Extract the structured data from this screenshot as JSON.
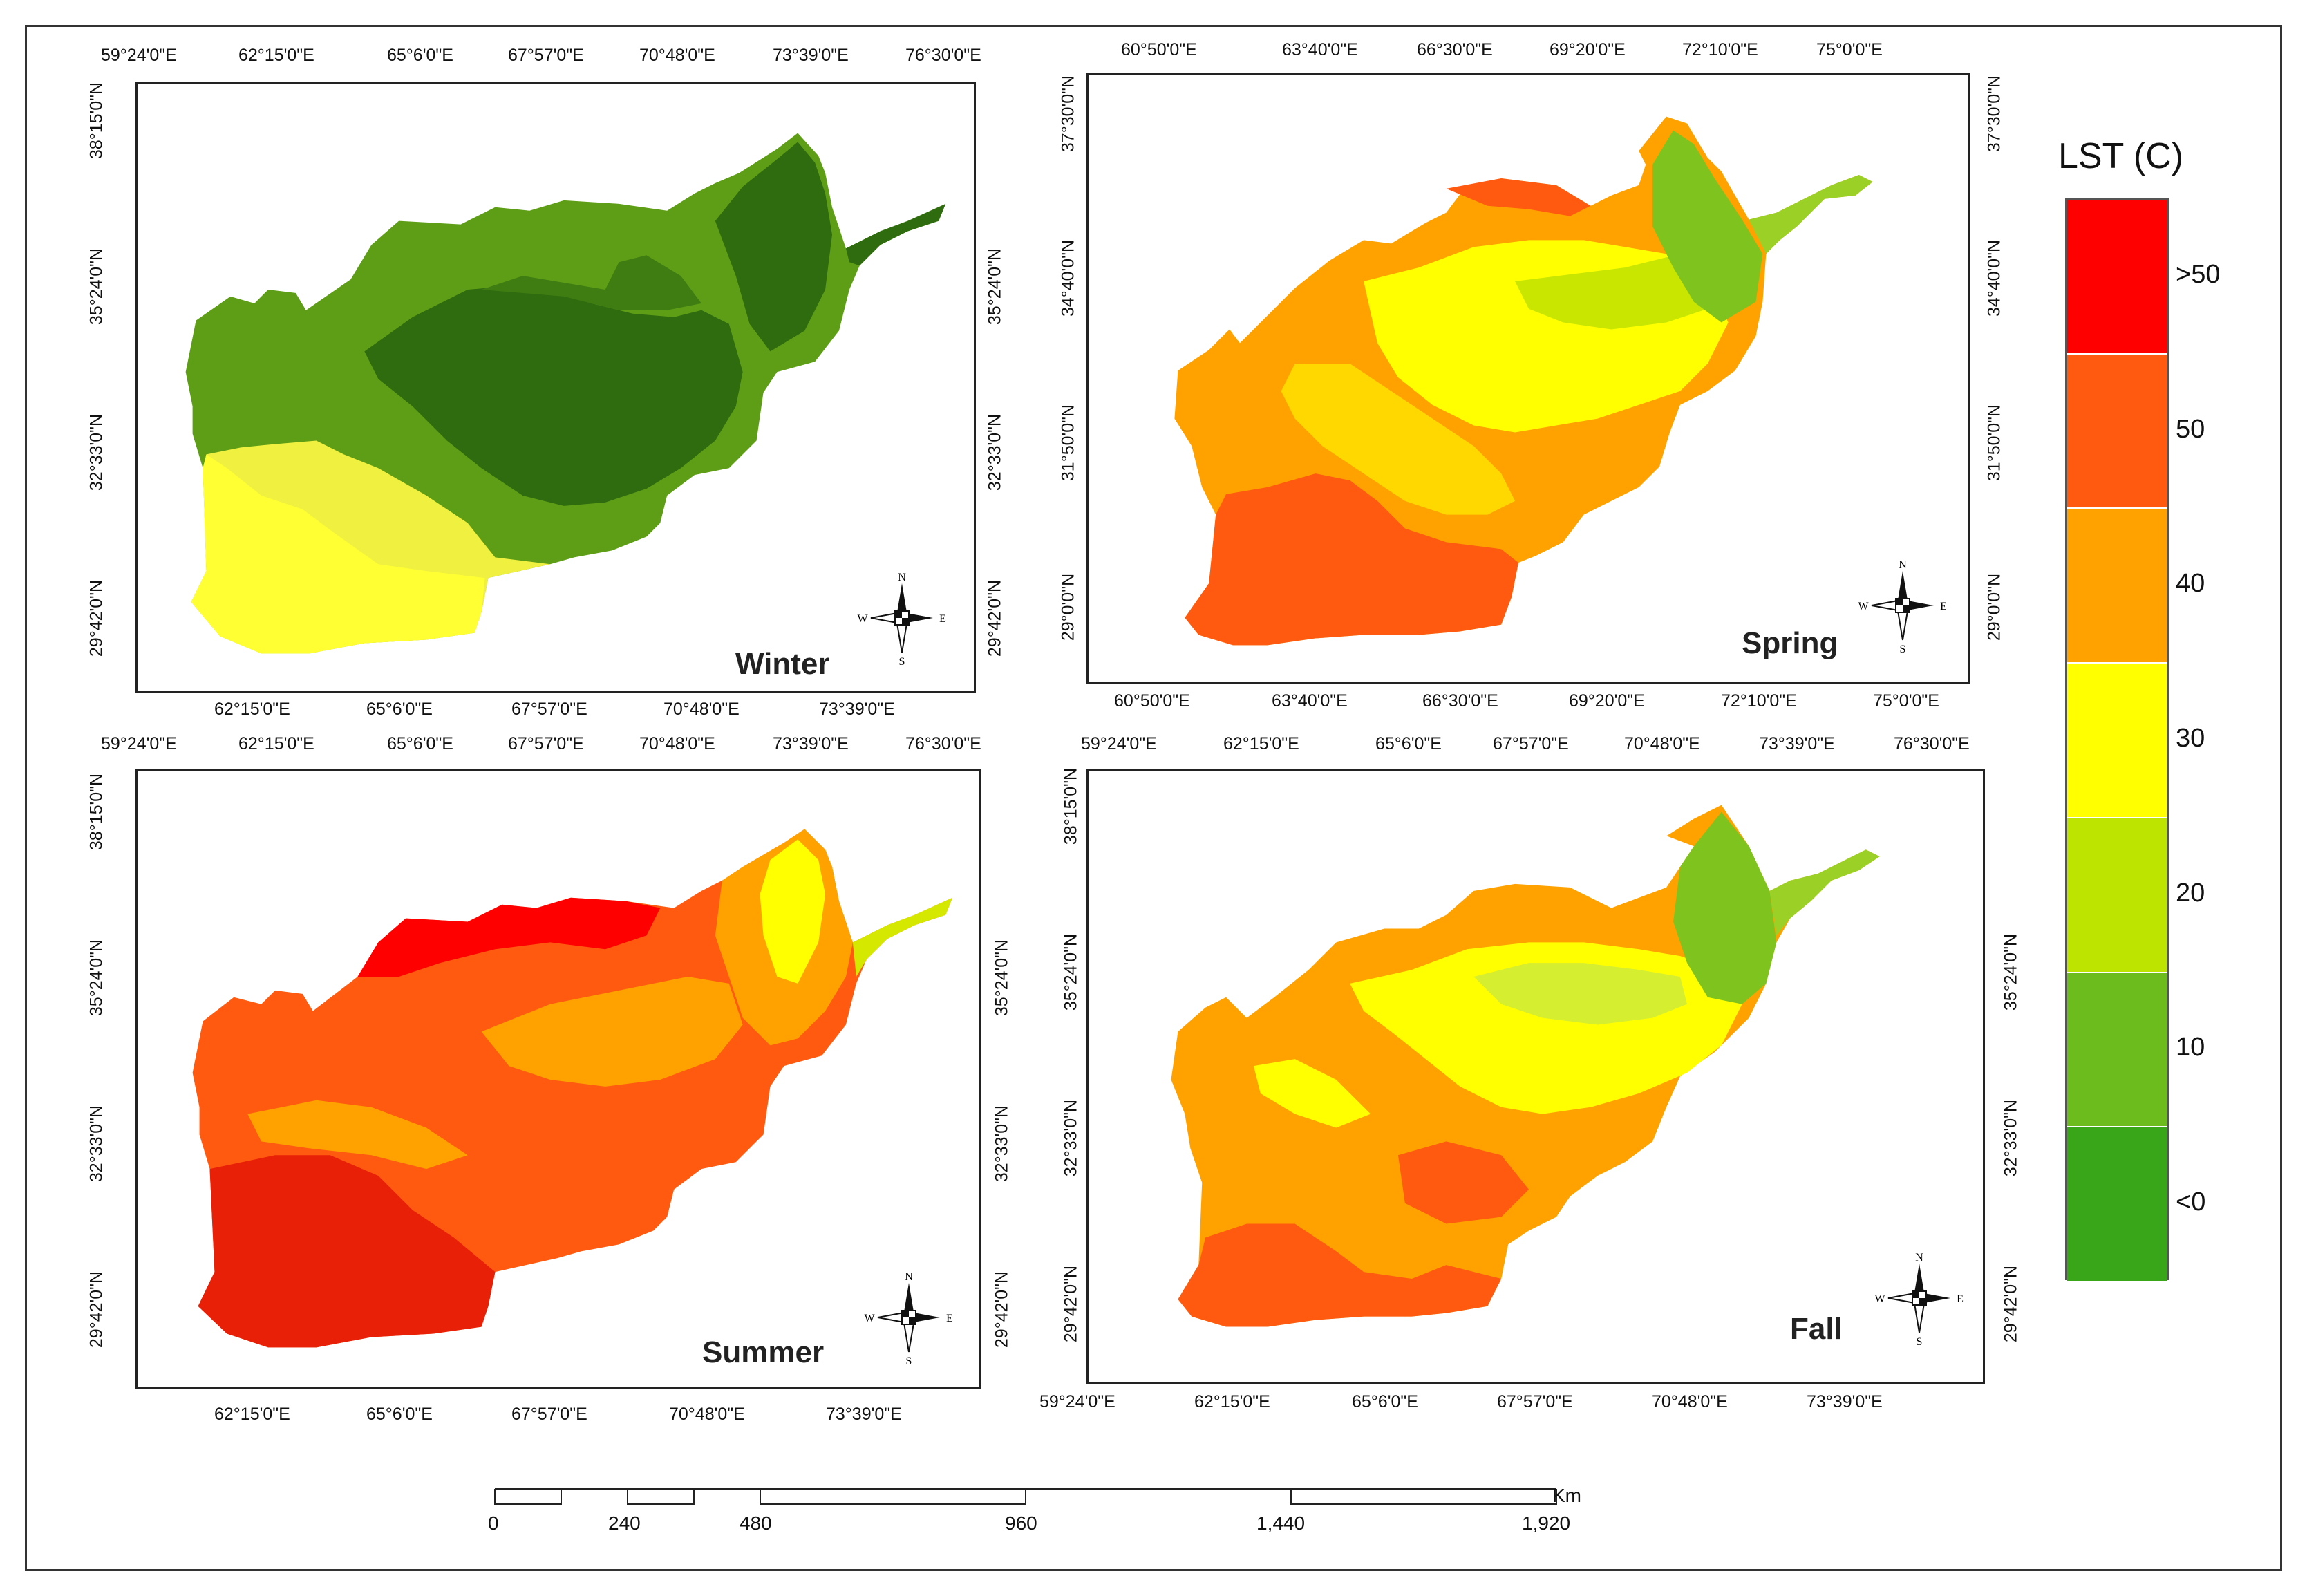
{
  "legend": {
    "title": "LST (C)",
    "classes": [
      {
        "label": ">50",
        "color": "#ff0000"
      },
      {
        "label": "50",
        "color": "#ff5a10"
      },
      {
        "label": "40",
        "color": "#ffa200"
      },
      {
        "label": "30",
        "color": "#ffff00"
      },
      {
        "label": "20",
        "color": "#bde300"
      },
      {
        "label": "10",
        "color": "#6cbc1e"
      },
      {
        "label": "<0",
        "color": "#39a518"
      }
    ]
  },
  "panels": {
    "winter": {
      "title": "Winter",
      "top_ticks": [
        "59°24'0\"E",
        "62°15'0\"E",
        "65°6'0\"E",
        "67°57'0\"E",
        "70°48'0\"E",
        "73°39'0\"E",
        "76°30'0\"E"
      ],
      "bottom_ticks": [
        "62°15'0\"E",
        "65°6'0\"E",
        "67°57'0\"E",
        "70°48'0\"E",
        "73°39'0\"E"
      ],
      "left_ticks": [
        "38°15'0\"N",
        "35°24'0\"N",
        "32°33'0\"N",
        "29°42'0\"N"
      ],
      "right_ticks": [
        "35°24'0\"N",
        "32°33'0\"N",
        "29°42'0\"N"
      ]
    },
    "spring": {
      "title": "Spring",
      "top_ticks": [
        "60°50'0\"E",
        "63°40'0\"E",
        "66°30'0\"E",
        "69°20'0\"E",
        "72°10'0\"E",
        "75°0'0\"E"
      ],
      "bottom_ticks": [
        "60°50'0\"E",
        "63°40'0\"E",
        "66°30'0\"E",
        "69°20'0\"E",
        "72°10'0\"E",
        "75°0'0\"E"
      ],
      "left_ticks": [
        "37°30'0\"N",
        "34°40'0\"N",
        "31°50'0\"N",
        "29°0'0\"N"
      ],
      "right_ticks": [
        "37°30'0\"N",
        "34°40'0\"N",
        "31°50'0\"N",
        "29°0'0\"N"
      ]
    },
    "summer": {
      "title": "Summer",
      "top_ticks": [
        "59°24'0\"E",
        "62°15'0\"E",
        "65°6'0\"E",
        "67°57'0\"E",
        "70°48'0\"E",
        "73°39'0\"E",
        "76°30'0\"E"
      ],
      "bottom_ticks": [
        "62°15'0\"E",
        "65°6'0\"E",
        "67°57'0\"E",
        "70°48'0\"E",
        "73°39'0\"E"
      ],
      "left_ticks": [
        "38°15'0\"N",
        "35°24'0\"N",
        "32°33'0\"N",
        "29°42'0\"N"
      ],
      "right_ticks": [
        "35°24'0\"N",
        "32°33'0\"N",
        "29°42'0\"N"
      ]
    },
    "fall": {
      "title": "Fall",
      "top_ticks": [
        "59°24'0\"E",
        "62°15'0\"E",
        "65°6'0\"E",
        "67°57'0\"E",
        "70°48'0\"E",
        "73°39'0\"E",
        "76°30'0\"E"
      ],
      "bottom_ticks": [
        "59°24'0\"E",
        "62°15'0\"E",
        "65°6'0\"E",
        "67°57'0\"E",
        "70°48'0\"E",
        "73°39'0\"E"
      ],
      "left_ticks": [
        "38°15'0\"N",
        "35°24'0\"N",
        "32°33'0\"N",
        "29°42'0\"N"
      ],
      "right_ticks": [
        "35°24'0\"N",
        "32°33'0\"N",
        "29°42'0\"N"
      ]
    }
  },
  "compass": {
    "n": "N",
    "s": "S",
    "e": "E",
    "w": "W"
  },
  "scale_bar": {
    "unit": "Km",
    "labels": [
      "0",
      "240",
      "480",
      "960",
      "1,440",
      "1,920"
    ]
  }
}
